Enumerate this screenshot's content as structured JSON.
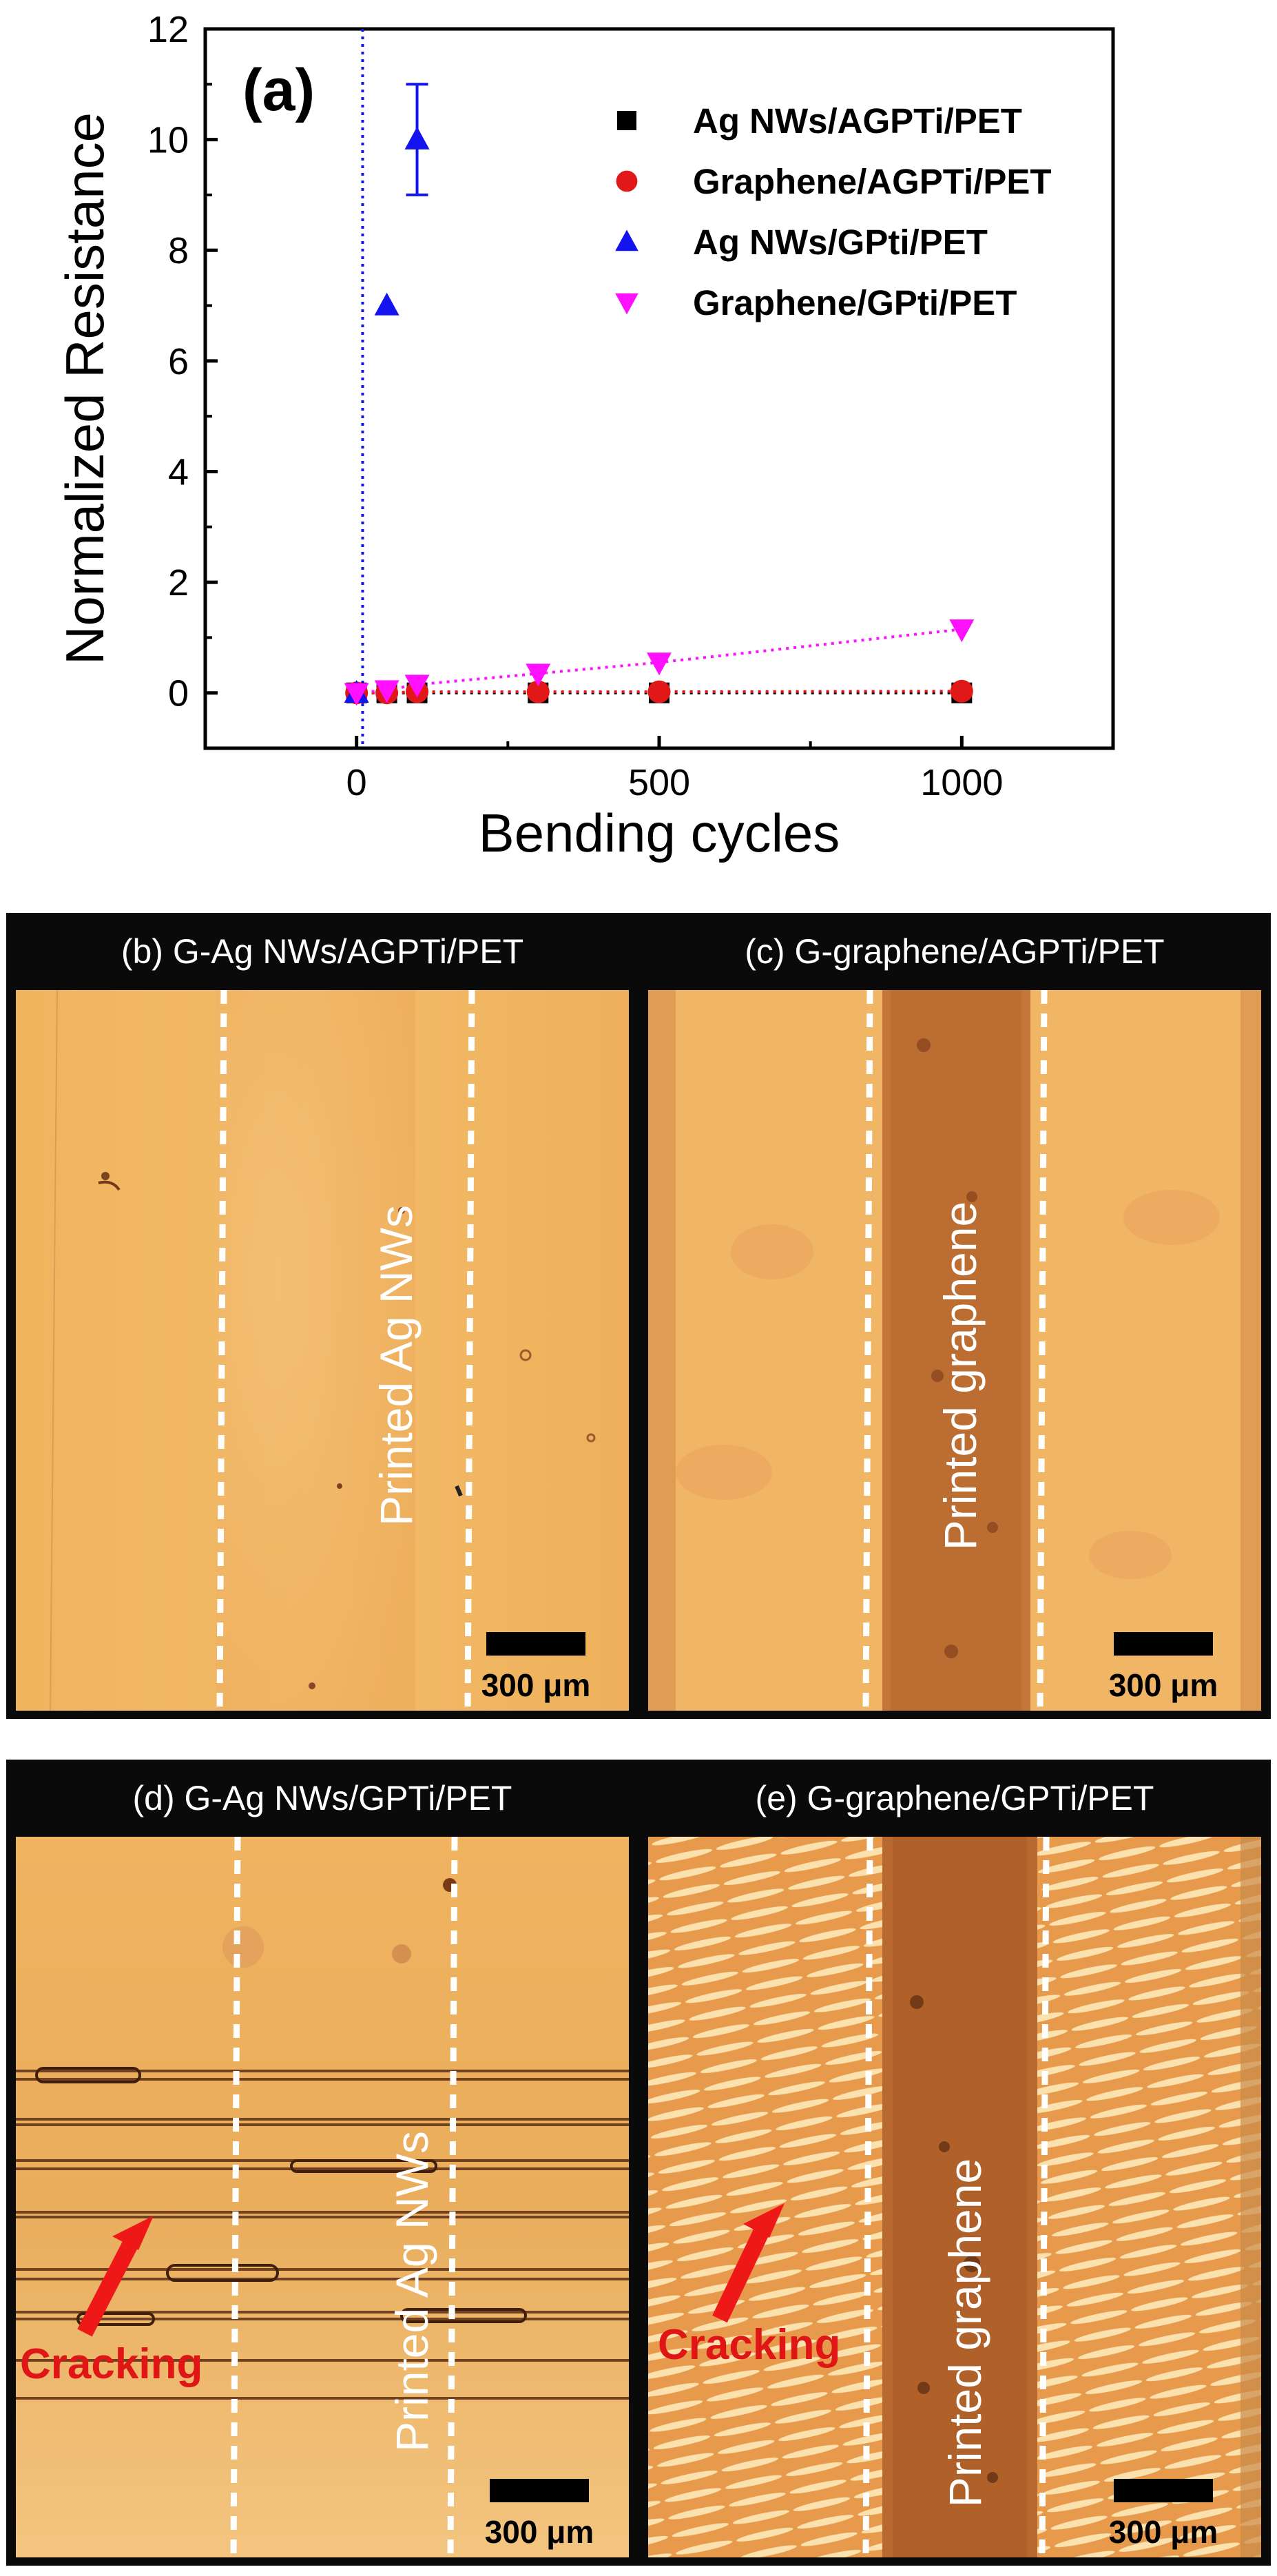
{
  "chart_data": {
    "type": "scatter",
    "panel_label": "(a)",
    "xlabel": "Bending cycles",
    "ylabel": "Normalized Resistance",
    "xlim": [
      -250,
      1250
    ],
    "ylim": [
      -1,
      12
    ],
    "xticks": [
      0,
      500,
      1000
    ],
    "yticks": [
      0,
      2,
      4,
      6,
      8,
      10,
      12
    ],
    "grid": false,
    "legend_position": "top-right",
    "reference_line_x": 10,
    "series": [
      {
        "name": "Ag NWs/AGPTi/PET",
        "marker": "square",
        "color": "#000000",
        "x": [
          0,
          50,
          100,
          300,
          500,
          1000
        ],
        "y": [
          0,
          0,
          0,
          0,
          0,
          0
        ],
        "connected": true
      },
      {
        "name": "Graphene/AGPTi/PET",
        "marker": "circle",
        "color": "#e01818",
        "x": [
          0,
          50,
          100,
          300,
          500,
          1000
        ],
        "y": [
          0,
          0,
          0.02,
          0.02,
          0.02,
          0.03
        ],
        "connected": true
      },
      {
        "name": "Ag NWs/GPti/PET",
        "marker": "triangle-up",
        "color": "#1414ee",
        "x": [
          0,
          50,
          100
        ],
        "y": [
          0,
          7,
          10
        ],
        "error": [
          0,
          0,
          1
        ],
        "connected": false
      },
      {
        "name": "Graphene/GPti/PET",
        "marker": "triangle-down",
        "color": "#ff10ff",
        "x": [
          0,
          50,
          100,
          300,
          500,
          1000
        ],
        "y": [
          0,
          0.05,
          0.15,
          0.35,
          0.55,
          1.15
        ],
        "connected": true
      }
    ]
  },
  "panels": [
    {
      "id": "b",
      "title": "(b) G-Ag NWs/AGPTi/PET",
      "overlay": "Printed Ag NWs",
      "scale": "300 μm",
      "crack_label": ""
    },
    {
      "id": "c",
      "title": "(c) G-graphene/AGPTi/PET",
      "overlay": "Printed graphene",
      "scale": "300 μm",
      "crack_label": ""
    },
    {
      "id": "d",
      "title": "(d) G-Ag NWs/GPTi/PET",
      "overlay": "Printed Ag NWs",
      "scale": "300 μm",
      "crack_label": "Cracking"
    },
    {
      "id": "e",
      "title": "(e) G-graphene/GPTi/PET",
      "overlay": "Printed graphene",
      "scale": "300 μm",
      "crack_label": "Cracking"
    }
  ]
}
